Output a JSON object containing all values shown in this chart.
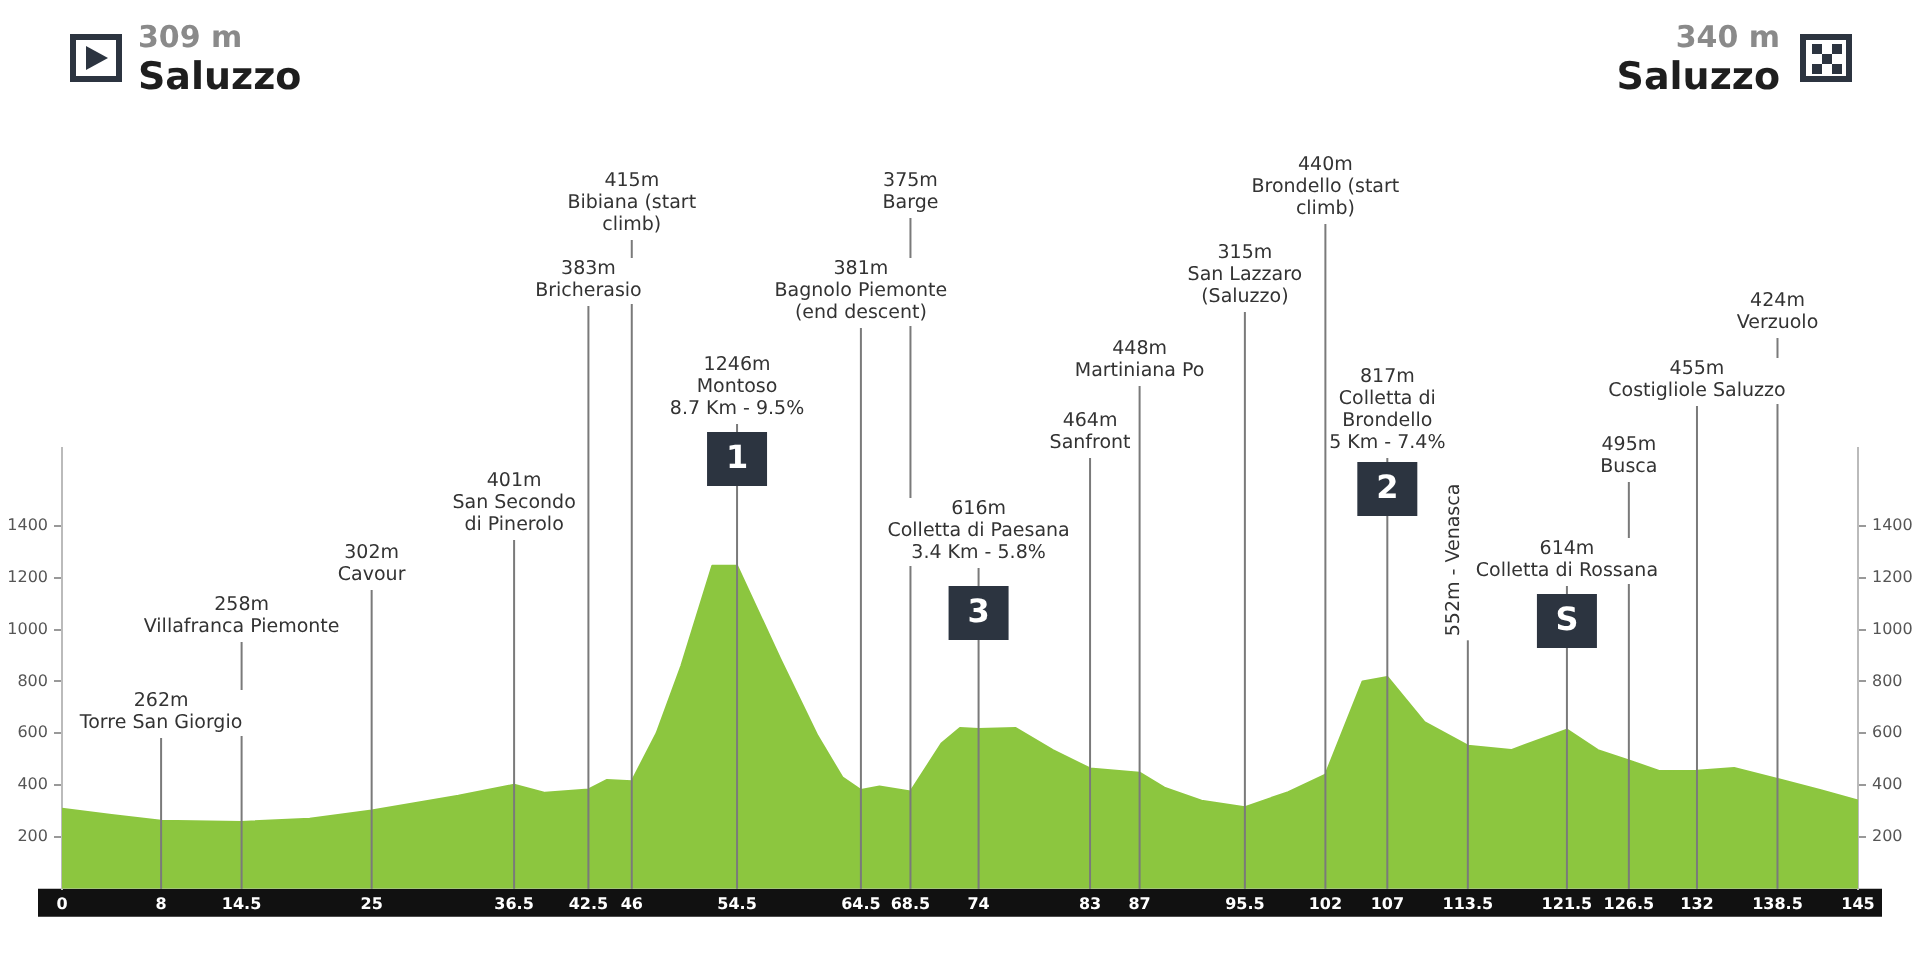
{
  "chart_data": {
    "type": "area",
    "x": [
      0,
      4,
      8,
      14.5,
      20,
      25,
      32,
      36.5,
      39,
      42.5,
      44,
      46,
      48,
      50,
      52.5,
      54.5,
      58,
      61,
      63,
      64.5,
      66,
      68.5,
      71,
      72.5,
      74,
      77,
      80,
      83,
      87,
      89,
      92,
      95.5,
      99,
      102,
      105,
      107,
      110,
      113.5,
      117,
      121.5,
      124,
      126.5,
      129,
      132,
      135,
      138.5,
      142,
      145
    ],
    "series": [
      {
        "color": "#8cc63f",
        "values": [
          309,
          285,
          262,
          258,
          270,
          302,
          359,
          401,
          370,
          383,
          420,
          415,
          600,
          860,
          1246,
          1246,
          886,
          590,
          430,
          381,
          395,
          375,
          560,
          620,
          616,
          620,
          535,
          464,
          448,
          390,
          340,
          315,
          373,
          440,
          800,
          817,
          643,
          552,
          535,
          614,
          535,
          495,
          454,
          455,
          466,
          424,
          380,
          340
        ]
      }
    ],
    "xlim": [
      0,
      145
    ],
    "xticks": [
      0,
      8,
      14.5,
      25,
      36.5,
      42.5,
      46,
      54.5,
      64.5,
      68.5,
      74,
      83,
      87,
      95.5,
      102,
      107,
      113.5,
      121.5,
      126.5,
      132,
      138.5,
      145
    ],
    "ylim": [
      0,
      1700
    ],
    "yticks": [
      200,
      400,
      600,
      800,
      1000,
      1200,
      1400
    ],
    "y2lim": [
      0,
      1700
    ],
    "y2ticks": [
      200,
      400,
      600,
      800,
      1000,
      1200,
      1400
    ],
    "grid": false,
    "legend": false,
    "ref_lines": [
      {
        "axis": "x",
        "value": 8,
        "label": "262m\nTorre San Giorgio",
        "color": "#7a7a7a"
      },
      {
        "axis": "x",
        "value": 14.5,
        "label": "258m\nVillafranca Piemonte",
        "color": "#7a7a7a"
      },
      {
        "axis": "x",
        "value": 25,
        "label": "302m\nCavour",
        "color": "#7a7a7a"
      },
      {
        "axis": "x",
        "value": 36.5,
        "label": "401m\nSan Secondo\ndi Pinerolo",
        "color": "#7a7a7a"
      },
      {
        "axis": "x",
        "value": 42.5,
        "label": "383m\nBricherasio",
        "color": "#7a7a7a"
      },
      {
        "axis": "x",
        "value": 46,
        "label": "415m\nBibiana (start\nclimb)",
        "color": "#7a7a7a"
      },
      {
        "axis": "x",
        "value": 54.5,
        "label": "1246m\nMontoso\n8.7 Km - 9.5%",
        "color": "#7a7a7a"
      },
      {
        "axis": "x",
        "value": 64.5,
        "label": "381m\nBagnolo Piemonte\n(end descent)",
        "color": "#7a7a7a"
      },
      {
        "axis": "x",
        "value": 68.5,
        "label": "375m\nBarge",
        "color": "#7a7a7a"
      },
      {
        "axis": "x",
        "value": 74,
        "label": "616m\nColletta di Paesana\n3.4 Km - 5.8%",
        "color": "#7a7a7a"
      },
      {
        "axis": "x",
        "value": 83,
        "label": "464m\nSanfront",
        "color": "#7a7a7a"
      },
      {
        "axis": "x",
        "value": 87,
        "label": "448m\nMartiniana Po",
        "color": "#7a7a7a"
      },
      {
        "axis": "x",
        "value": 95.5,
        "label": "315m\nSan Lazzaro\n(Saluzzo)",
        "color": "#7a7a7a"
      },
      {
        "axis": "x",
        "value": 102,
        "label": "440m\nBrondello (start\nclimb)",
        "color": "#7a7a7a"
      },
      {
        "axis": "x",
        "value": 107,
        "label": "817m\nColletta di\nBrondello\n5 Km - 7.4%",
        "color": "#7a7a7a"
      },
      {
        "axis": "x",
        "value": 113.5,
        "label": "552m - Venasca",
        "color": "#7a7a7a"
      },
      {
        "axis": "x",
        "value": 121.5,
        "label": "614m\nColletta di Rossana",
        "color": "#7a7a7a"
      },
      {
        "axis": "x",
        "value": 126.5,
        "label": "495m\nBusca",
        "color": "#7a7a7a"
      },
      {
        "axis": "x",
        "value": 132,
        "label": "455m\nCostigliole Saluzzo",
        "color": "#7a7a7a"
      },
      {
        "axis": "x",
        "value": 138.5,
        "label": "424m\nVerzuolo",
        "color": "#7a7a7a"
      }
    ],
    "annotations": [
      "309 m\nSaluzzo",
      {
        "text": "1",
        "x": 54.5
      },
      {
        "text": "3",
        "x": 74
      },
      {
        "text": "2",
        "x": 107
      },
      {
        "text": "S",
        "x": 121.5
      },
      "340 m\nSaluzzo"
    ]
  }
}
